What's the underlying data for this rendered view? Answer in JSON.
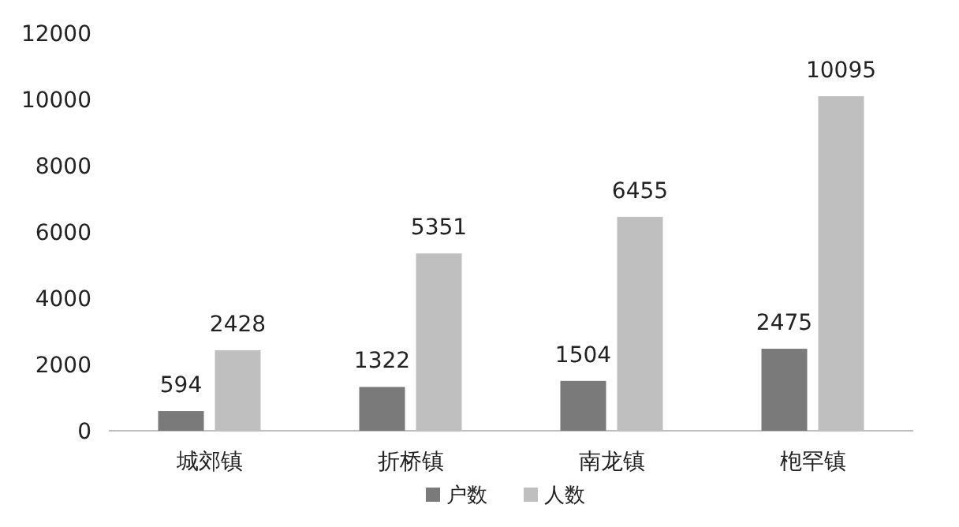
{
  "chart_data": {
    "type": "bar",
    "categories": [
      "城郊镇",
      "折桥镇",
      "南龙镇",
      "枹罕镇"
    ],
    "series": [
      {
        "name": "户数",
        "color": "#7a7a7a",
        "values": [
          594,
          1322,
          1504,
          2475
        ]
      },
      {
        "name": "人数",
        "color": "#bfbfbf",
        "values": [
          2428,
          5351,
          6455,
          10095
        ]
      }
    ],
    "ylim": [
      0,
      12000
    ],
    "yticks": [
      0,
      2000,
      4000,
      6000,
      8000,
      10000,
      12000
    ],
    "grid": false,
    "legend": "bottom",
    "data_labels": true
  }
}
